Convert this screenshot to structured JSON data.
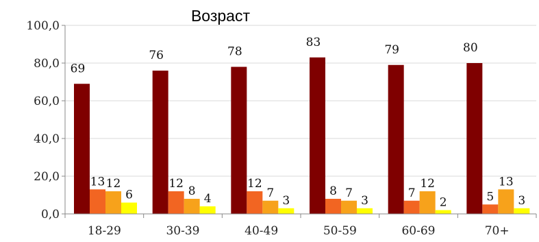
{
  "chart_data": {
    "type": "bar",
    "title": "Возраст",
    "categories": [
      "18-29",
      "30-39",
      "40-49",
      "50-59",
      "60-69",
      "70+"
    ],
    "series": [
      {
        "values": [
          69,
          76,
          78,
          83,
          79,
          80
        ],
        "color": "#7f0000"
      },
      {
        "values": [
          13,
          12,
          12,
          8,
          7,
          5
        ],
        "color": "#f26522"
      },
      {
        "values": [
          12,
          8,
          7,
          7,
          12,
          13
        ],
        "color": "#f7a21b"
      },
      {
        "values": [
          6,
          4,
          3,
          3,
          2,
          3
        ],
        "color": "#ffff00"
      }
    ],
    "yticks": [
      "0,0",
      "20,0",
      "40,0",
      "60,0",
      "80,0",
      "100,0"
    ],
    "ylim": [
      0,
      100
    ],
    "grid": true,
    "legend": "none"
  }
}
